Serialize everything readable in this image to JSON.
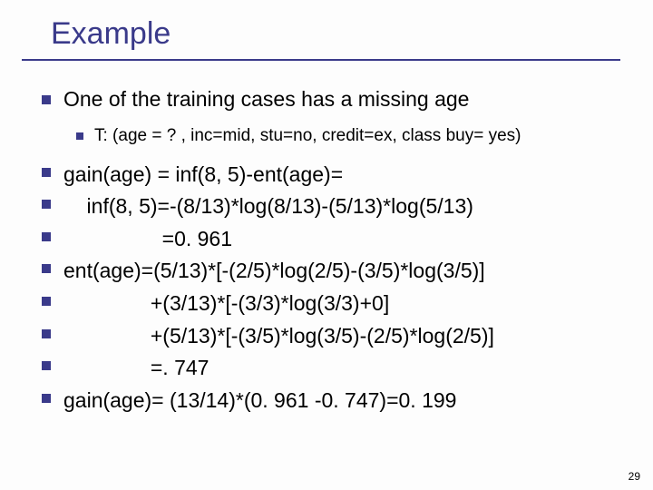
{
  "colors": {
    "accent": "#3a3a8a",
    "text": "#000000",
    "background": "#fdfdfd"
  },
  "title": "Example",
  "firstLine": "One of the training cases has a missing age",
  "subLine": "T: (age = ? , inc=mid, stu=no, credit=ex, class buy= yes)",
  "lines": [
    "gain(age) = inf(8, 5)-ent(age)=",
    "    inf(8, 5)=-(8/13)*log(8/13)-(5/13)*log(5/13)",
    "                 =0. 961",
    "ent(age)=(5/13)*[-(2/5)*log(2/5)-(3/5)*log(3/5)]",
    "               +(3/13)*[-(3/3)*log(3/3)+0]",
    "               +(5/13)*[-(3/5)*log(3/5)-(2/5)*log(2/5)]",
    "               =. 747",
    "gain(age)= (13/14)*(0. 961 -0. 747)=0. 199"
  ],
  "pageNumber": "29",
  "typography": {
    "title_fontsize": 34,
    "body_fontsize": 23,
    "sub_fontsize": 19,
    "footer_fontsize": 12
  }
}
